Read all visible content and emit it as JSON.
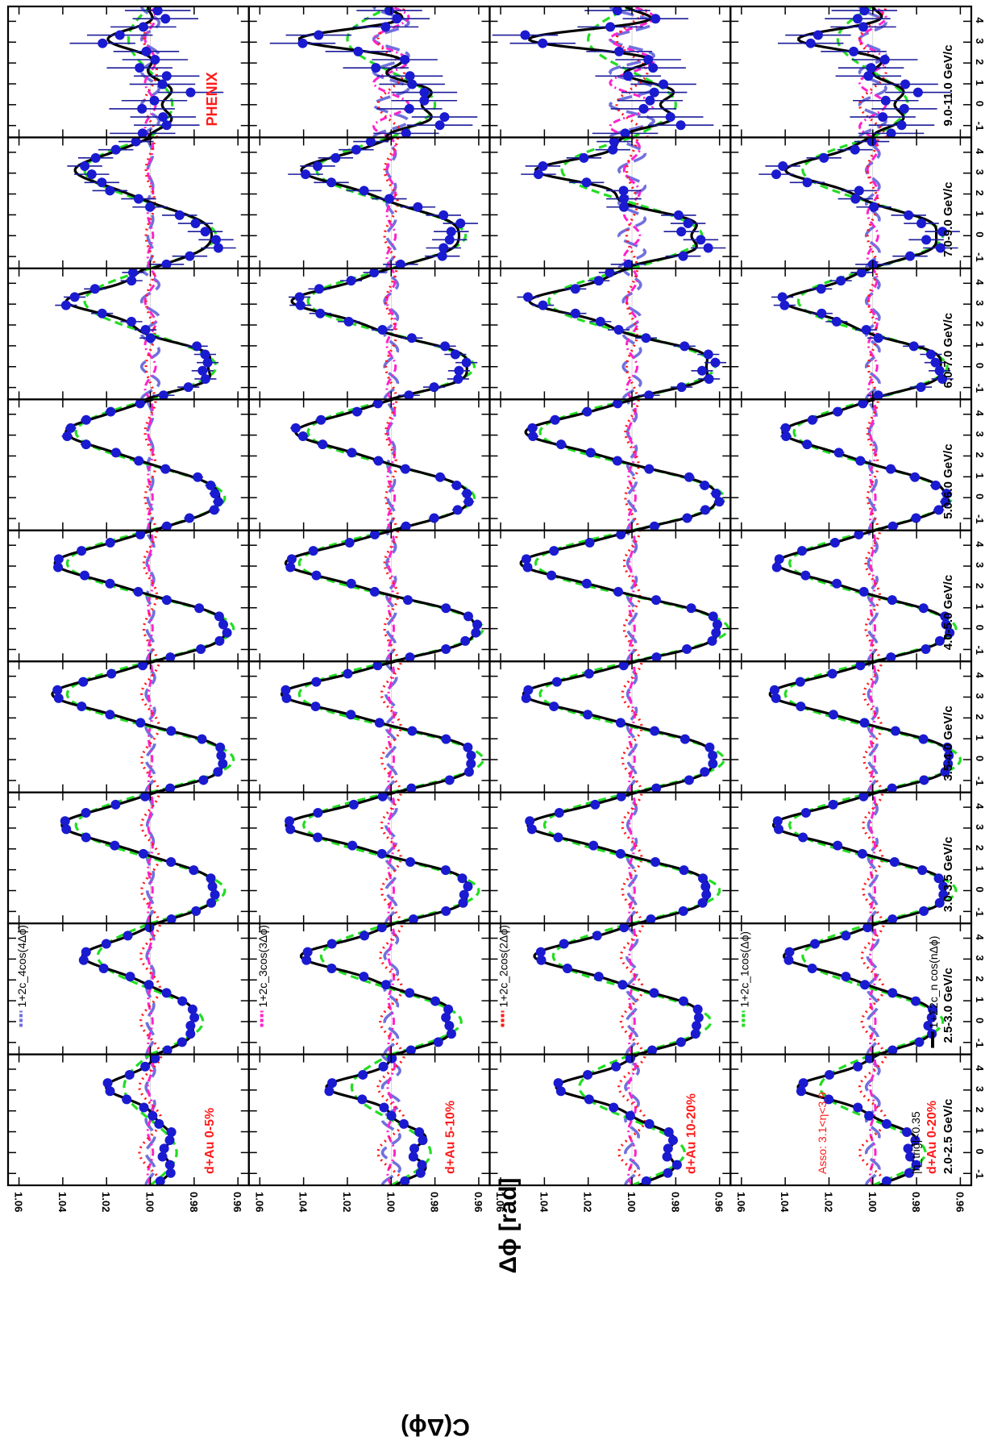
{
  "figure": {
    "y_axis_title": "C(Δϕ)",
    "x_axis_title": "Δϕ [rad]",
    "experiment_label": "PHENIX",
    "colors": {
      "data": "#1a1ad0",
      "errbar": "#1c1c9a",
      "total_fit": "#000000",
      "c1": "#22dd22",
      "c2": "#ff1a1a",
      "c3": "#ff22cc",
      "c4": "#7070dd",
      "label_red": "#ff1a1a"
    },
    "legend": [
      {
        "key": "total",
        "text": "1+Σ2c_n cos(nΔϕ)",
        "color": "#000000",
        "style": "solid"
      },
      {
        "key": "c1",
        "text": "1+2c_1cos(Δϕ)",
        "color": "#22dd22",
        "style": "dashed"
      },
      {
        "key": "c2",
        "text": "1+2c_2cos(2Δϕ)",
        "color": "#ff1a1a",
        "style": "dotted"
      },
      {
        "key": "c3",
        "text": "1+2c_3cos(3Δϕ)",
        "color": "#ff22cc",
        "style": "dashdot"
      },
      {
        "key": "c4",
        "text": "1+2c_4cos(4Δϕ)",
        "color": "#7070dd",
        "style": "longdash"
      }
    ],
    "annotations": {
      "eta_trig": "|η_trig|<0.35",
      "asso": "Asso: 3.1<η<3.9"
    }
  },
  "chart_data": {
    "type": "scatter",
    "x_range": [
      -1.5708,
      4.7124
    ],
    "y_range": [
      0.955,
      1.065
    ],
    "x_ticks": [
      -1,
      0,
      1,
      2,
      3,
      4
    ],
    "x_tick_labels": [
      "-1",
      "0",
      "1",
      "2",
      "3",
      "4"
    ],
    "y_ticks": [
      0.96,
      0.98,
      1.0,
      1.02,
      1.04,
      1.06
    ],
    "y_tick_labels": [
      "0.96",
      "0.98",
      "1.00",
      "1.02",
      "1.04",
      "1.06"
    ],
    "pt_bins": [
      "2.0-2.5 GeV/c",
      "2.5-3.0 GeV/c",
      "3.0-3.5 GeV/c",
      "3.5-4.0 GeV/c",
      "4.0-5.0 GeV/c",
      "5.0-6.0 GeV/c",
      "6.0-7.0 GeV/c",
      "7.0-9.0 GeV/c",
      "9.0-11.0 GeV/c"
    ],
    "centralities": [
      "d+Au 0-5%",
      "d+Au 5-10%",
      "d+Au 10-20%",
      "d+Au 0-20%"
    ],
    "fit_coefficients_c1": [
      [
        -0.006,
        -0.012,
        -0.017,
        -0.019,
        -0.019,
        -0.017,
        -0.015,
        -0.015,
        -0.005
      ],
      [
        -0.009,
        -0.016,
        -0.02,
        -0.021,
        -0.021,
        -0.019,
        -0.019,
        -0.017,
        -0.01
      ],
      [
        -0.012,
        -0.018,
        -0.02,
        -0.021,
        -0.022,
        -0.021,
        -0.019,
        -0.016,
        -0.01
      ],
      [
        -0.012,
        -0.016,
        -0.019,
        -0.02,
        -0.019,
        -0.018,
        -0.017,
        -0.016,
        -0.008
      ]
    ],
    "fit_coefficients_c2": [
      [
        0.0025,
        0.0022,
        0.002,
        0.002,
        0.0015,
        0.0012,
        0.001,
        0.001,
        0.0015
      ],
      [
        0.003,
        0.0025,
        0.0022,
        0.0022,
        0.0015,
        0.0012,
        0.0012,
        0.0015,
        0.003
      ],
      [
        0.003,
        0.0025,
        0.0022,
        0.0022,
        0.0018,
        0.0015,
        0.0012,
        0.0012,
        0.0035
      ],
      [
        0.003,
        0.0025,
        0.0022,
        0.002,
        0.0016,
        0.0012,
        0.001,
        0.0012,
        0.003
      ]
    ],
    "fit_coefficients_c3": [
      [
        -0.0006,
        -0.0005,
        -0.0005,
        -0.0004,
        -0.0005,
        -0.0005,
        -0.0012,
        -0.0006,
        -0.0012
      ],
      [
        -0.0008,
        -0.0006,
        -0.0006,
        -0.0006,
        -0.0006,
        -0.0008,
        -0.001,
        -0.001,
        -0.004
      ],
      [
        -0.0008,
        -0.0006,
        -0.0006,
        -0.0006,
        -0.0006,
        -0.0008,
        -0.0012,
        -0.0018,
        -0.005
      ],
      [
        -0.0006,
        -0.0006,
        -0.0005,
        -0.0005,
        -0.0005,
        -0.0006,
        -0.001,
        -0.0012,
        -0.003
      ]
    ],
    "fit_coefficients_c4": [
      [
        0.001,
        0.0008,
        0.0007,
        0.001,
        0.0008,
        0.0006,
        0.002,
        0.0006,
        0.002
      ],
      [
        0.002,
        0.0015,
        0.0012,
        0.0012,
        0.001,
        0.0008,
        0.0015,
        0.001,
        0.004
      ],
      [
        0.0015,
        0.0012,
        0.001,
        0.001,
        0.001,
        0.001,
        0.002,
        0.003,
        0.005
      ],
      [
        0.0015,
        0.0012,
        0.001,
        0.001,
        0.001,
        0.0008,
        0.0015,
        0.0015,
        0.003
      ]
    ],
    "data_point_count_per_panel": 16,
    "data_error_by_pt_bin": [
      0.0015,
      0.0015,
      0.0015,
      0.0015,
      0.0018,
      0.0025,
      0.005,
      0.008,
      0.015
    ]
  }
}
